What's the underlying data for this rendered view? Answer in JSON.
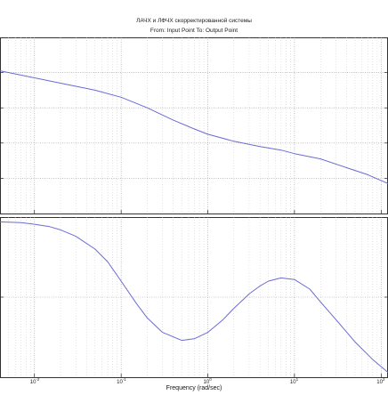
{
  "chart_data": [
    {
      "type": "line",
      "panel": "magnitude",
      "title": "ЛАЧХ и ЛФЧХ скорректированной системы",
      "subtitle": "From: Input Point  To: Output Point",
      "xscale": "log",
      "xlim": [
        0.004,
        120
      ],
      "ylim": [
        0,
        1
      ],
      "grid": true,
      "legend": "none",
      "line_color": "#6b6bd6",
      "series": [
        {
          "x": [
            0.004,
            0.01,
            0.02,
            0.05,
            0.1,
            0.2,
            0.4,
            0.7,
            1,
            2,
            4,
            7,
            10,
            20,
            40,
            70,
            120
          ],
          "y": [
            0.81,
            0.77,
            0.74,
            0.7,
            0.66,
            0.6,
            0.53,
            0.48,
            0.45,
            0.41,
            0.38,
            0.36,
            0.34,
            0.31,
            0.26,
            0.22,
            0.17
          ]
        }
      ]
    },
    {
      "type": "line",
      "panel": "phase",
      "xscale": "log",
      "xlim": [
        0.004,
        120
      ],
      "ylim": [
        0,
        1
      ],
      "grid": true,
      "legend": "none",
      "line_color": "#6b6bd6",
      "xticks": [
        0.01,
        0.1,
        1,
        10,
        100
      ],
      "xlabel": "Frequency  (rad/sec)",
      "series": [
        {
          "x": [
            0.004,
            0.007,
            0.01,
            0.015,
            0.02,
            0.03,
            0.05,
            0.07,
            0.1,
            0.15,
            0.2,
            0.3,
            0.5,
            0.7,
            1,
            1.5,
            2,
            3,
            4,
            5,
            7,
            10,
            15,
            20,
            30,
            50,
            80,
            120
          ],
          "y": [
            0.97,
            0.965,
            0.955,
            0.94,
            0.92,
            0.88,
            0.8,
            0.72,
            0.6,
            0.46,
            0.37,
            0.28,
            0.23,
            0.24,
            0.28,
            0.36,
            0.43,
            0.52,
            0.57,
            0.6,
            0.62,
            0.61,
            0.55,
            0.47,
            0.36,
            0.22,
            0.11,
            0.03
          ]
        }
      ]
    }
  ],
  "tick_labels": {
    "base": "10",
    "exponents": [
      "-2",
      "-1",
      "0",
      "1",
      "2"
    ]
  }
}
